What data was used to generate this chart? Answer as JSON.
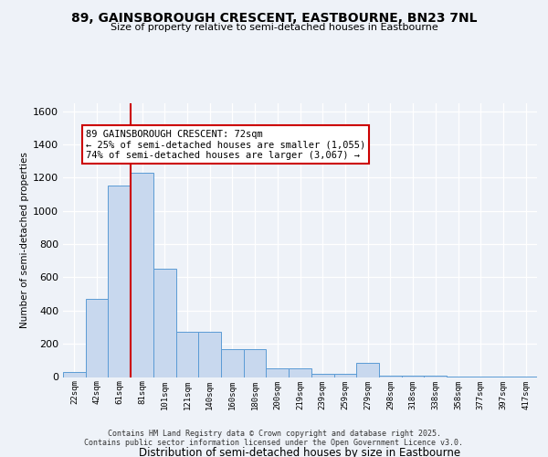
{
  "title1": "89, GAINSBOROUGH CRESCENT, EASTBOURNE, BN23 7NL",
  "title2": "Size of property relative to semi-detached houses in Eastbourne",
  "xlabel": "Distribution of semi-detached houses by size in Eastbourne",
  "ylabel": "Number of semi-detached properties",
  "categories": [
    "22sqm",
    "42sqm",
    "61sqm",
    "81sqm",
    "101sqm",
    "121sqm",
    "140sqm",
    "160sqm",
    "180sqm",
    "200sqm",
    "219sqm",
    "239sqm",
    "259sqm",
    "279sqm",
    "298sqm",
    "318sqm",
    "338sqm",
    "358sqm",
    "377sqm",
    "397sqm",
    "417sqm"
  ],
  "values": [
    30,
    470,
    1150,
    1230,
    650,
    275,
    270,
    170,
    170,
    55,
    55,
    20,
    20,
    85,
    8,
    8,
    8,
    5,
    4,
    4,
    4
  ],
  "bar_color": "#c8d8ee",
  "bar_edge_color": "#5b9bd5",
  "redline_x": 2.5,
  "annotation_line1": "89 GAINSBOROUGH CRESCENT: 72sqm",
  "annotation_line2": "← 25% of semi-detached houses are smaller (1,055)",
  "annotation_line3": "74% of semi-detached houses are larger (3,067) →",
  "annotation_box_color": "#ffffff",
  "annotation_box_edge": "#cc0000",
  "footer1": "Contains HM Land Registry data © Crown copyright and database right 2025.",
  "footer2": "Contains public sector information licensed under the Open Government Licence v3.0.",
  "ylim": [
    0,
    1650
  ],
  "yticks": [
    0,
    200,
    400,
    600,
    800,
    1000,
    1200,
    1400,
    1600
  ],
  "background_color": "#eef2f8",
  "plot_bg_color": "#eef2f8",
  "grid_color": "#ffffff"
}
